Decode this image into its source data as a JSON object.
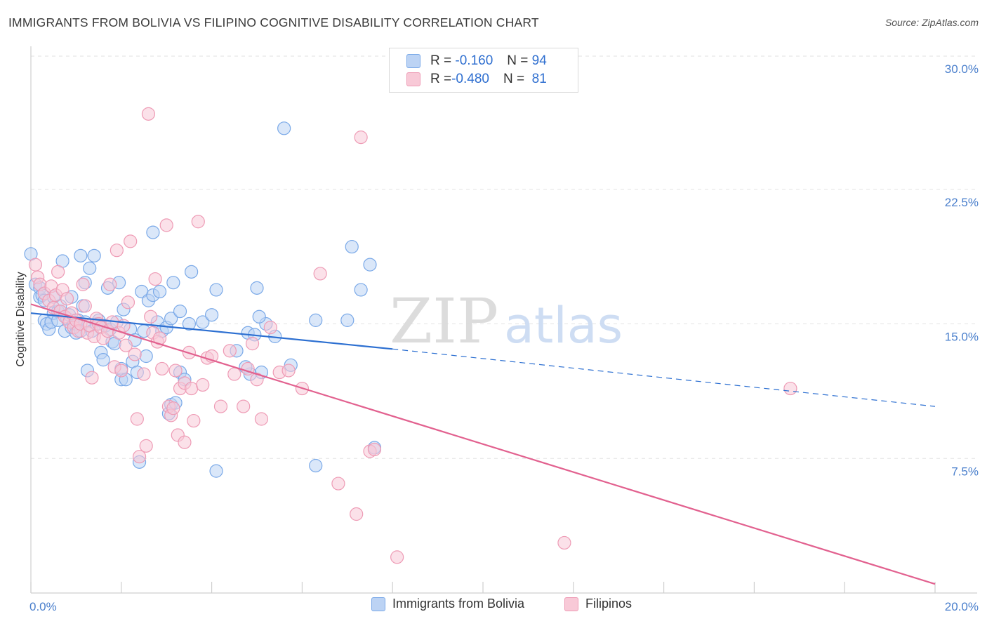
{
  "title": "IMMIGRANTS FROM BOLIVIA VS FILIPINO COGNITIVE DISABILITY CORRELATION CHART",
  "source": "Source: ZipAtlas.com",
  "watermark": {
    "zip": "ZIP",
    "atlas": "atlas"
  },
  "legend_top": {
    "rows": [
      {
        "r_label": "R = ",
        "r_value": "-0.160",
        "n_label": "N = ",
        "n_value": "94"
      },
      {
        "r_label": "R = ",
        "r_value": "-0.480",
        "n_label": "N = ",
        "n_value": "81"
      }
    ]
  },
  "chart_data": {
    "type": "scatter",
    "xlabel": "",
    "ylabel": "Cognitive Disability",
    "xlim": [
      0,
      20
    ],
    "ylim": [
      0,
      30
    ],
    "x_unit": "%",
    "y_unit": "%",
    "x_tick_labels": [
      "0.0%",
      "20.0%"
    ],
    "y_ticks": [
      7.5,
      15.0,
      22.5,
      30.0
    ],
    "y_tick_labels": [
      "7.5%",
      "15.0%",
      "22.5%",
      "30.0%"
    ],
    "grid": true,
    "legend_position": "top-center",
    "series": [
      {
        "name": "Immigrants from Bolivia",
        "color": "#7aa9e8",
        "fill": "#bcd3f4",
        "line_color": "#2c6fd1",
        "trend": {
          "x_start": 0,
          "y_start": 15.6,
          "x_solid_end": 8.0,
          "y_solid_end": 13.6,
          "x_end": 20,
          "y_end": 10.4
        },
        "points": [
          [
            0.1,
            17.2
          ],
          [
            0.2,
            16.5
          ],
          [
            0.2,
            17.0
          ],
          [
            0.25,
            16.6
          ],
          [
            0.3,
            16.3
          ],
          [
            0.3,
            15.2
          ],
          [
            0.35,
            15.0
          ],
          [
            0.4,
            14.7
          ],
          [
            0.45,
            15.1
          ],
          [
            0.5,
            15.6
          ],
          [
            0.5,
            16.5
          ],
          [
            0.6,
            15.7
          ],
          [
            0.6,
            15.2
          ],
          [
            0.65,
            16.0
          ],
          [
            0.7,
            18.5
          ],
          [
            0.75,
            14.6
          ],
          [
            0.8,
            15.3
          ],
          [
            0.85,
            15.5
          ],
          [
            0.9,
            16.5
          ],
          [
            0.9,
            14.8
          ],
          [
            0.95,
            15.0
          ],
          [
            1.0,
            14.5
          ],
          [
            1.0,
            15.0
          ],
          [
            1.05,
            15.2
          ],
          [
            1.1,
            18.8
          ],
          [
            1.1,
            14.6
          ],
          [
            1.15,
            16.0
          ],
          [
            1.2,
            17.3
          ],
          [
            1.2,
            15.1
          ],
          [
            1.25,
            12.4
          ],
          [
            1.3,
            18.1
          ],
          [
            1.35,
            14.6
          ],
          [
            1.4,
            18.8
          ],
          [
            1.45,
            15.0
          ],
          [
            1.5,
            15.2
          ],
          [
            1.55,
            13.4
          ],
          [
            1.6,
            13.0
          ],
          [
            1.65,
            14.9
          ],
          [
            1.7,
            17.0
          ],
          [
            1.75,
            14.7
          ],
          [
            1.8,
            14.0
          ],
          [
            1.85,
            13.9
          ],
          [
            1.9,
            15.1
          ],
          [
            1.95,
            17.3
          ],
          [
            2.0,
            11.9
          ],
          [
            2.0,
            12.5
          ],
          [
            2.05,
            15.8
          ],
          [
            2.1,
            11.9
          ],
          [
            2.2,
            14.7
          ],
          [
            2.25,
            12.9
          ],
          [
            2.3,
            14.1
          ],
          [
            2.35,
            12.3
          ],
          [
            2.4,
            7.3
          ],
          [
            2.45,
            16.8
          ],
          [
            2.5,
            14.6
          ],
          [
            2.55,
            13.2
          ],
          [
            2.6,
            16.3
          ],
          [
            2.7,
            16.6
          ],
          [
            2.7,
            20.1
          ],
          [
            2.8,
            15.1
          ],
          [
            2.85,
            16.8
          ],
          [
            2.9,
            14.6
          ],
          [
            3.0,
            14.8
          ],
          [
            3.05,
            10.0
          ],
          [
            3.1,
            15.3
          ],
          [
            3.15,
            17.3
          ],
          [
            3.3,
            15.7
          ],
          [
            3.3,
            12.3
          ],
          [
            3.4,
            11.9
          ],
          [
            3.5,
            15.0
          ],
          [
            3.1,
            10.5
          ],
          [
            3.2,
            10.6
          ],
          [
            3.55,
            17.9
          ],
          [
            3.8,
            15.1
          ],
          [
            4.0,
            15.5
          ],
          [
            4.1,
            6.8
          ],
          [
            4.55,
            13.5
          ],
          [
            4.8,
            14.5
          ],
          [
            4.85,
            12.2
          ],
          [
            4.95,
            14.4
          ],
          [
            5.1,
            12.3
          ],
          [
            5.2,
            15.0
          ],
          [
            5.4,
            14.3
          ],
          [
            5.05,
            15.4
          ],
          [
            4.1,
            16.9
          ],
          [
            4.75,
            12.6
          ],
          [
            5.75,
            12.7
          ],
          [
            5.0,
            17.0
          ],
          [
            5.6,
            25.9
          ],
          [
            6.3,
            15.2
          ],
          [
            6.3,
            7.1
          ],
          [
            7.0,
            15.2
          ],
          [
            7.1,
            19.3
          ],
          [
            7.5,
            18.3
          ],
          [
            7.3,
            16.9
          ],
          [
            7.6,
            8.1
          ],
          [
            0.0,
            18.9
          ]
        ]
      },
      {
        "name": "Filipinos",
        "color": "#ee9bb5",
        "fill": "#f8c9d7",
        "line_color": "#e2618f",
        "trend": {
          "x_start": 0,
          "y_start": 16.1,
          "x_end": 20,
          "y_end": 0.5
        },
        "points": [
          [
            0.1,
            18.3
          ],
          [
            0.15,
            17.6
          ],
          [
            0.2,
            17.2
          ],
          [
            0.3,
            16.7
          ],
          [
            0.4,
            16.3
          ],
          [
            0.45,
            17.1
          ],
          [
            0.5,
            15.9
          ],
          [
            0.55,
            16.6
          ],
          [
            0.6,
            17.9
          ],
          [
            0.65,
            15.7
          ],
          [
            0.7,
            16.9
          ],
          [
            0.75,
            15.4
          ],
          [
            0.8,
            16.4
          ],
          [
            0.85,
            15.1
          ],
          [
            0.9,
            15.6
          ],
          [
            0.95,
            14.8
          ],
          [
            1.0,
            15.2
          ],
          [
            1.05,
            14.6
          ],
          [
            1.1,
            15.0
          ],
          [
            1.15,
            17.2
          ],
          [
            1.2,
            16.0
          ],
          [
            1.25,
            14.5
          ],
          [
            1.3,
            14.9
          ],
          [
            1.35,
            12.0
          ],
          [
            1.4,
            14.3
          ],
          [
            1.45,
            15.3
          ],
          [
            1.5,
            15.0
          ],
          [
            1.55,
            14.8
          ],
          [
            1.6,
            14.2
          ],
          [
            1.7,
            14.6
          ],
          [
            1.75,
            17.2
          ],
          [
            1.8,
            15.1
          ],
          [
            1.85,
            12.6
          ],
          [
            1.9,
            19.1
          ],
          [
            1.95,
            14.5
          ],
          [
            2.0,
            12.4
          ],
          [
            2.05,
            14.9
          ],
          [
            2.1,
            13.8
          ],
          [
            2.15,
            16.2
          ],
          [
            2.2,
            19.6
          ],
          [
            2.3,
            13.3
          ],
          [
            2.35,
            9.7
          ],
          [
            2.4,
            7.6
          ],
          [
            2.5,
            12.2
          ],
          [
            2.55,
            8.2
          ],
          [
            2.6,
            26.7
          ],
          [
            2.65,
            15.4
          ],
          [
            2.7,
            14.5
          ],
          [
            2.75,
            17.5
          ],
          [
            2.8,
            14.0
          ],
          [
            2.85,
            14.2
          ],
          [
            2.9,
            12.5
          ],
          [
            3.0,
            20.5
          ],
          [
            3.05,
            10.4
          ],
          [
            3.1,
            9.9
          ],
          [
            3.15,
            10.3
          ],
          [
            3.2,
            12.4
          ],
          [
            3.25,
            8.8
          ],
          [
            3.3,
            11.4
          ],
          [
            3.4,
            8.4
          ],
          [
            3.4,
            11.7
          ],
          [
            3.5,
            13.4
          ],
          [
            3.55,
            11.4
          ],
          [
            3.6,
            9.6
          ],
          [
            3.7,
            20.7
          ],
          [
            3.8,
            11.6
          ],
          [
            3.9,
            13.1
          ],
          [
            4.0,
            13.2
          ],
          [
            4.2,
            10.4
          ],
          [
            4.4,
            13.5
          ],
          [
            4.5,
            12.2
          ],
          [
            4.7,
            10.4
          ],
          [
            4.8,
            12.5
          ],
          [
            4.9,
            13.9
          ],
          [
            5.0,
            11.9
          ],
          [
            5.1,
            9.7
          ],
          [
            5.3,
            14.8
          ],
          [
            5.5,
            12.3
          ],
          [
            5.7,
            12.4
          ],
          [
            6.0,
            11.4
          ],
          [
            6.4,
            17.8
          ],
          [
            6.8,
            6.1
          ],
          [
            7.2,
            4.4
          ],
          [
            7.3,
            25.4
          ],
          [
            7.5,
            7.9
          ],
          [
            7.6,
            8.0
          ],
          [
            8.1,
            2.0
          ],
          [
            11.8,
            2.8
          ],
          [
            16.8,
            11.4
          ]
        ]
      }
    ]
  },
  "legend_bottom": [
    {
      "label": "Immigrants from Bolivia"
    },
    {
      "label": "Filipinos"
    }
  ]
}
